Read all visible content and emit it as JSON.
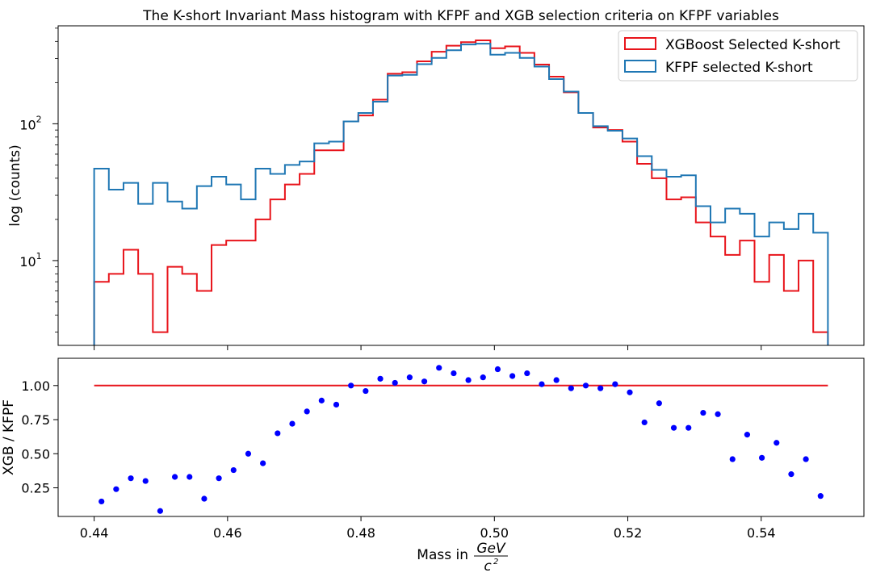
{
  "chart_data": [
    {
      "type": "line",
      "title": "The K-short Invariant Mass histogram with KFPF and XGB selection criteria on KFPF variables",
      "ylabel": "log (counts)",
      "yscale": "log",
      "ylim": [
        2.4,
        520
      ],
      "xlim": [
        0.4346,
        0.5554
      ],
      "x_ticks": [
        0.44,
        0.46,
        0.48,
        0.5,
        0.52,
        0.54
      ],
      "y_ticks": [
        {
          "value": 10,
          "label": "10",
          "exp": "1"
        },
        {
          "value": 100,
          "label": "10",
          "exp": "2"
        }
      ],
      "bin_edges": [
        0.44,
        0.4422,
        0.4444,
        0.4466,
        0.4488,
        0.451,
        0.4532,
        0.4554,
        0.4576,
        0.4598,
        0.462,
        0.4642,
        0.4664,
        0.4686,
        0.4708,
        0.473,
        0.4752,
        0.4774,
        0.4796,
        0.4818,
        0.484,
        0.4862,
        0.4884,
        0.4906,
        0.4928,
        0.495,
        0.4972,
        0.4994,
        0.5016,
        0.5038,
        0.506,
        0.5082,
        0.5104,
        0.5126,
        0.5148,
        0.517,
        0.5192,
        0.5214,
        0.5236,
        0.5258,
        0.528,
        0.5302,
        0.5324,
        0.5346,
        0.5368,
        0.539,
        0.5412,
        0.5434,
        0.5456,
        0.5478,
        0.55
      ],
      "legend_position": "upper right",
      "series": [
        {
          "name": "XGBoost Selected K-short",
          "color": "#e8141b",
          "values": [
            7,
            8,
            12,
            8,
            3,
            9,
            8,
            6,
            13,
            14,
            14,
            20,
            28,
            36,
            43,
            64,
            64,
            104,
            115,
            150,
            232,
            238,
            286,
            336,
            372,
            395,
            407,
            357,
            368,
            330,
            271,
            221,
            170,
            120,
            94,
            90,
            74,
            51,
            40,
            28,
            29,
            19,
            15,
            11,
            14,
            7,
            11,
            6,
            10,
            3
          ]
        },
        {
          "name": "KFPF selected K-short",
          "color": "#1f77b4",
          "values": [
            47,
            33,
            37,
            26,
            37,
            27,
            24,
            35,
            41,
            36,
            28,
            47,
            43,
            50,
            53,
            72,
            74,
            104,
            120,
            145,
            225,
            228,
            273,
            303,
            345,
            380,
            385,
            320,
            330,
            303,
            262,
            212,
            172,
            120,
            96,
            89,
            78,
            58,
            46,
            41,
            42,
            25,
            19,
            24,
            22,
            15,
            19,
            17,
            22,
            16
          ]
        }
      ]
    },
    {
      "type": "scatter",
      "xlabel": "Mass in",
      "xlabel_fraction": {
        "numerator": "GeV",
        "denominator": "c",
        "denominator_exp": "2"
      },
      "ylabel": "XGB / KFPF",
      "xlim": [
        0.4346,
        0.5554
      ],
      "ylim": [
        0.04,
        1.2
      ],
      "x_ticks": [
        {
          "value": 0.44,
          "label": "0.44"
        },
        {
          "value": 0.46,
          "label": "0.46"
        },
        {
          "value": 0.48,
          "label": "0.48"
        },
        {
          "value": 0.5,
          "label": "0.50"
        },
        {
          "value": 0.52,
          "label": "0.52"
        },
        {
          "value": 0.54,
          "label": "0.54"
        }
      ],
      "y_ticks": [
        {
          "value": 0.25,
          "label": "0.25"
        },
        {
          "value": 0.5,
          "label": "0.50"
        },
        {
          "value": 0.75,
          "label": "0.75"
        },
        {
          "value": 1.0,
          "label": "1.00"
        }
      ],
      "reference_line": {
        "y": 1.0,
        "x": [
          0.44,
          0.55
        ],
        "color": "#e8141b"
      },
      "point_color": "#0000ff",
      "x": [
        0.4411,
        0.4433,
        0.4455,
        0.4477,
        0.4499,
        0.4521,
        0.4543,
        0.4565,
        0.4587,
        0.4609,
        0.4631,
        0.4653,
        0.4675,
        0.4697,
        0.4719,
        0.4741,
        0.4763,
        0.4785,
        0.4807,
        0.4829,
        0.4851,
        0.4873,
        0.4895,
        0.4917,
        0.4939,
        0.4961,
        0.4983,
        0.5005,
        0.5027,
        0.5049,
        0.5071,
        0.5093,
        0.5115,
        0.5137,
        0.5159,
        0.5181,
        0.5203,
        0.5225,
        0.5247,
        0.5269,
        0.5291,
        0.5313,
        0.5335,
        0.5357,
        0.5379,
        0.5401,
        0.5423,
        0.5445,
        0.5467,
        0.5489
      ],
      "y": [
        0.15,
        0.24,
        0.32,
        0.3,
        0.08,
        0.33,
        0.33,
        0.17,
        0.32,
        0.38,
        0.5,
        0.43,
        0.65,
        0.72,
        0.81,
        0.89,
        0.86,
        1.0,
        0.96,
        1.05,
        1.02,
        1.06,
        1.03,
        1.13,
        1.09,
        1.04,
        1.06,
        1.12,
        1.07,
        1.09,
        1.01,
        1.04,
        0.98,
        1.0,
        0.98,
        1.01,
        0.95,
        0.73,
        0.87,
        0.69,
        0.69,
        0.8,
        0.79,
        0.46,
        0.64,
        0.47,
        0.58,
        0.35,
        0.46,
        0.19
      ]
    }
  ]
}
